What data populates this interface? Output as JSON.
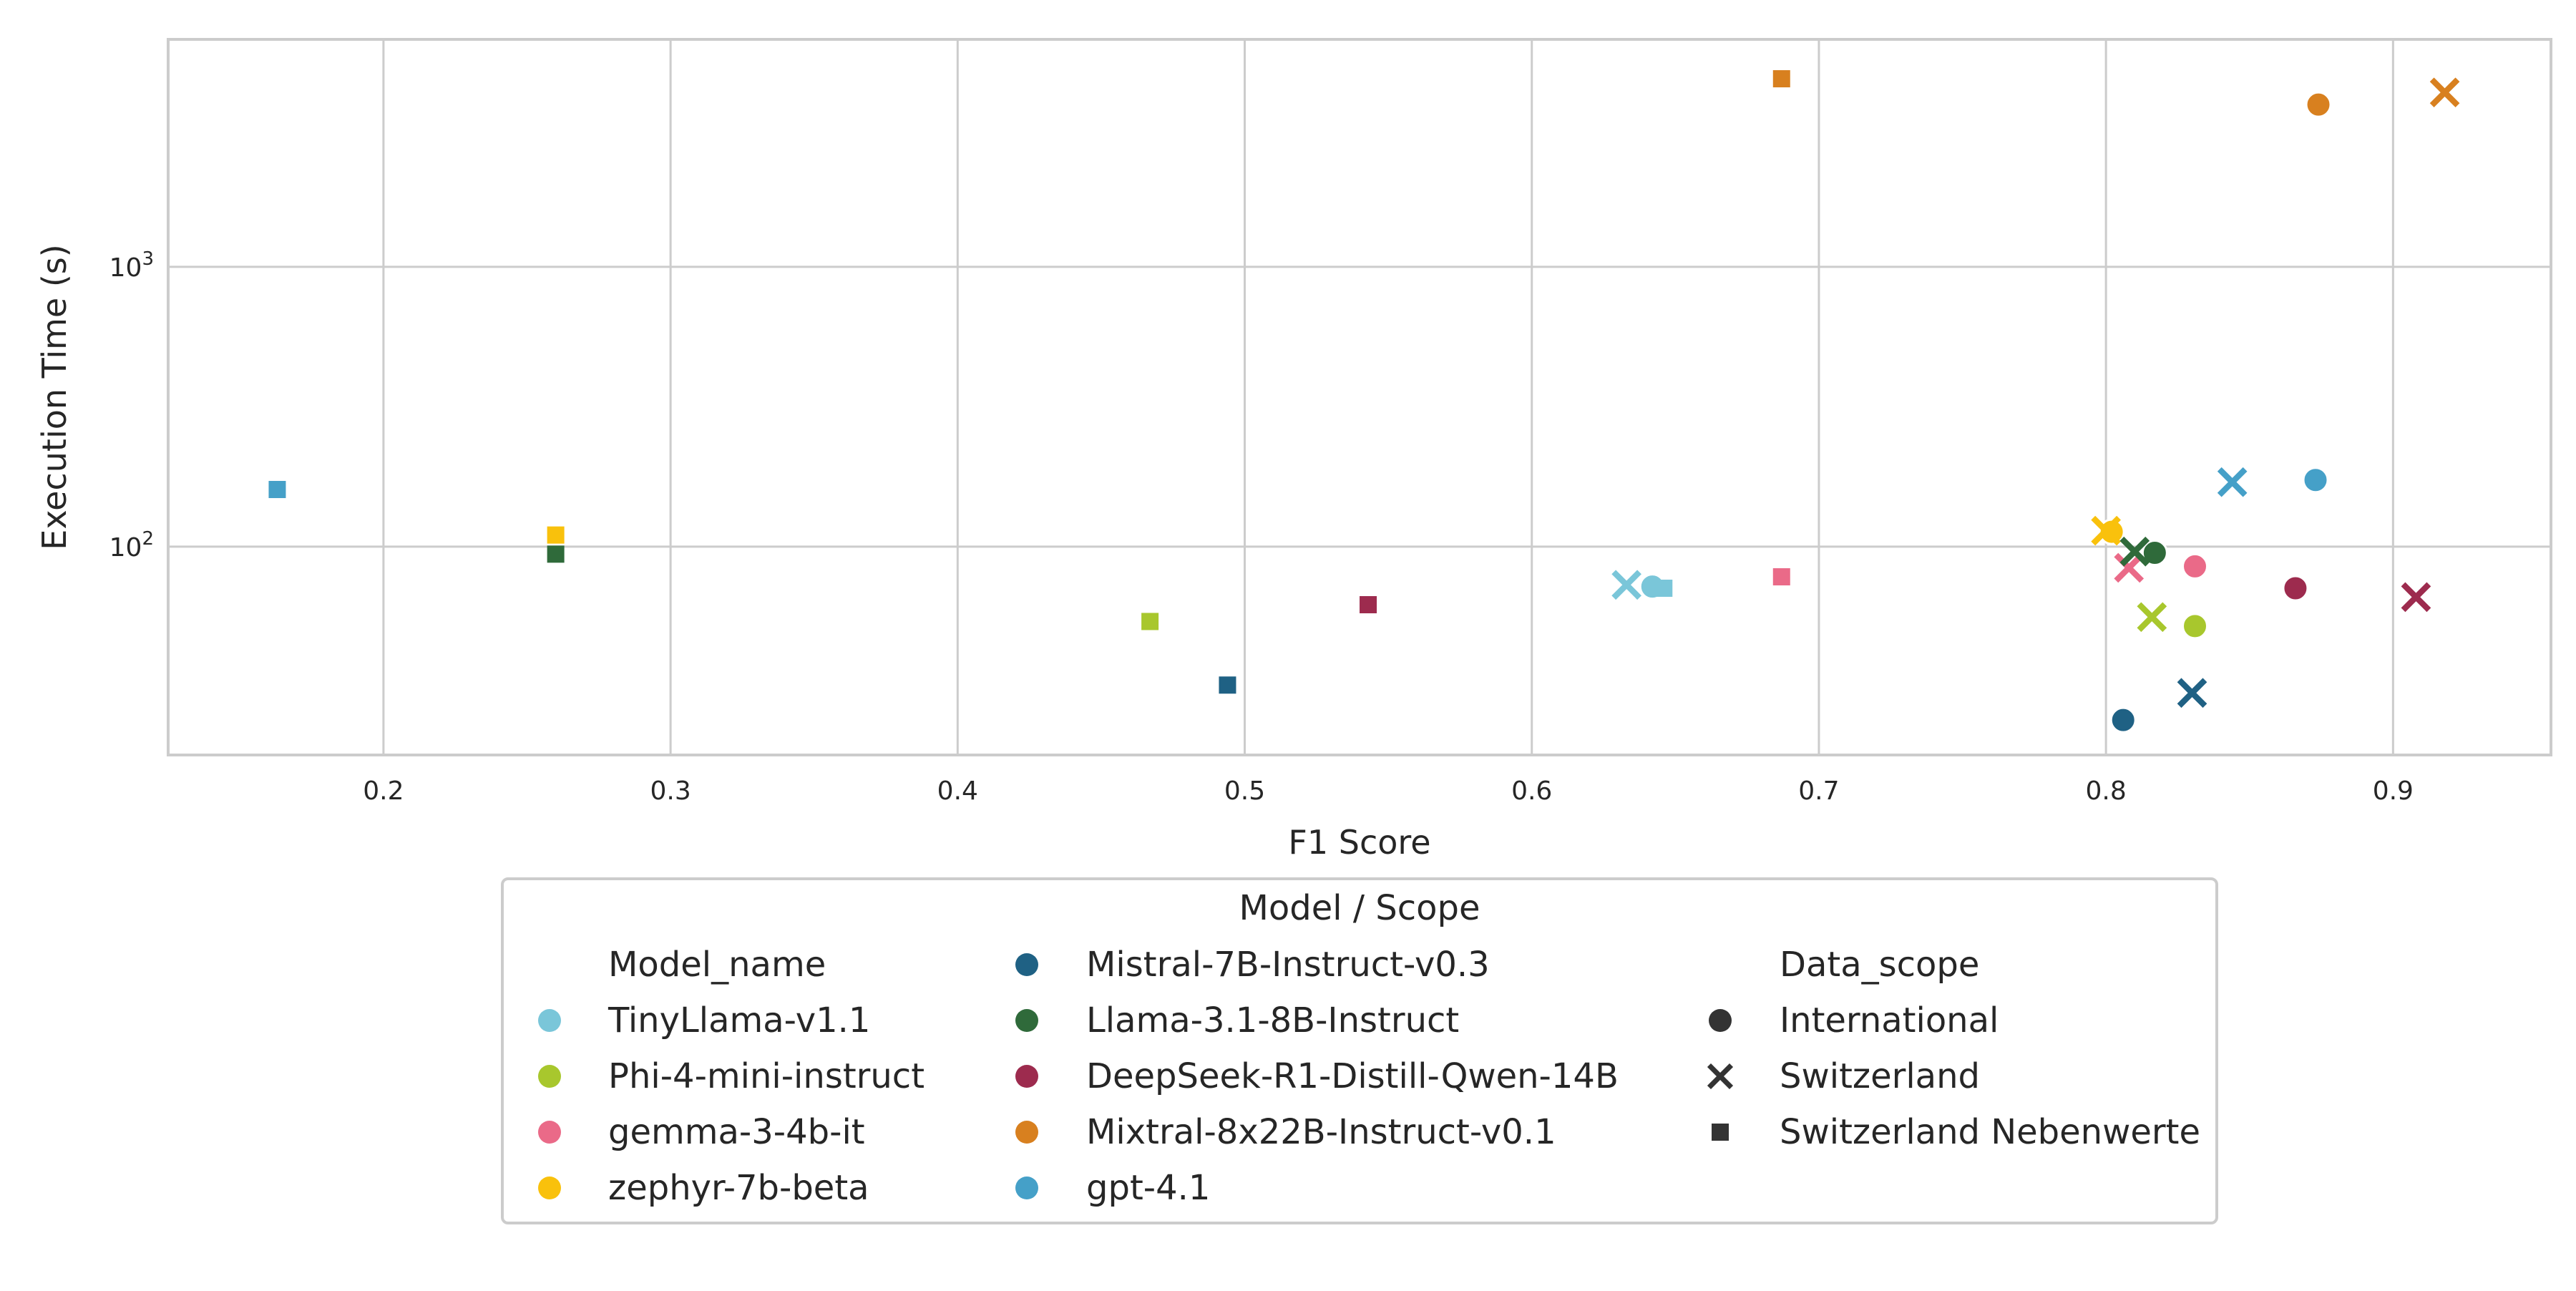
{
  "chart_data": {
    "type": "scatter",
    "title": "",
    "xlabel": "F1 Score",
    "ylabel": "Execution Time (s)",
    "xlim": [
      0.125,
      0.955
    ],
    "ylim": [
      18,
      6500
    ],
    "yscale": "log",
    "grid": true,
    "x_ticks": [
      {
        "value": 0.2,
        "label": "0.2"
      },
      {
        "value": 0.3,
        "label": "0.3"
      },
      {
        "value": 0.4,
        "label": "0.4"
      },
      {
        "value": 0.5,
        "label": "0.5"
      },
      {
        "value": 0.6,
        "label": "0.6"
      },
      {
        "value": 0.7,
        "label": "0.7"
      },
      {
        "value": 0.8,
        "label": "0.8"
      },
      {
        "value": 0.9,
        "label": "0.9"
      }
    ],
    "y_ticks": [
      {
        "value": 100,
        "base": "10",
        "exp": "2"
      },
      {
        "value": 1000,
        "base": "10",
        "exp": "3"
      }
    ],
    "legend": {
      "title": "Model / Scope",
      "placement": "below",
      "model_header": "Model_name",
      "scope_header": "Data_scope",
      "scope_color": "#333333"
    },
    "models": [
      {
        "name": "TinyLlama-v1.1",
        "color": "#7ac6d9"
      },
      {
        "name": "Phi-4-mini-instruct",
        "color": "#a8c72d"
      },
      {
        "name": "gemma-3-4b-it",
        "color": "#ea6a88"
      },
      {
        "name": "zephyr-7b-beta",
        "color": "#f9c10c"
      },
      {
        "name": "Mistral-7B-Instruct-v0.3",
        "color": "#1f6184"
      },
      {
        "name": "Llama-3.1-8B-Instruct",
        "color": "#2f6a3a"
      },
      {
        "name": "DeepSeek-R1-Distill-Qwen-14B",
        "color": "#9d2b4e"
      },
      {
        "name": "Mixtral-8x22B-Instruct-v0.1",
        "color": "#d8801f"
      },
      {
        "name": "gpt-4.1",
        "color": "#45a0c8"
      }
    ],
    "scopes": [
      {
        "name": "International",
        "marker": "circle"
      },
      {
        "name": "Switzerland",
        "marker": "x"
      },
      {
        "name": "Switzerland Nebenwerte",
        "marker": "square"
      }
    ],
    "points": [
      {
        "model": "TinyLlama-v1.1",
        "scope": "International",
        "x": 0.642,
        "y": 72
      },
      {
        "model": "TinyLlama-v1.1",
        "scope": "Switzerland",
        "x": 0.633,
        "y": 73
      },
      {
        "model": "TinyLlama-v1.1",
        "scope": "Switzerland Nebenwerte",
        "x": 0.646,
        "y": 71
      },
      {
        "model": "Phi-4-mini-instruct",
        "scope": "International",
        "x": 0.831,
        "y": 52
      },
      {
        "model": "Phi-4-mini-instruct",
        "scope": "Switzerland",
        "x": 0.816,
        "y": 56
      },
      {
        "model": "Phi-4-mini-instruct",
        "scope": "Switzerland Nebenwerte",
        "x": 0.467,
        "y": 54
      },
      {
        "model": "gemma-3-4b-it",
        "scope": "International",
        "x": 0.831,
        "y": 85
      },
      {
        "model": "gemma-3-4b-it",
        "scope": "Switzerland",
        "x": 0.808,
        "y": 84
      },
      {
        "model": "gemma-3-4b-it",
        "scope": "Switzerland Nebenwerte",
        "x": 0.687,
        "y": 78
      },
      {
        "model": "zephyr-7b-beta",
        "scope": "International",
        "x": 0.802,
        "y": 113
      },
      {
        "model": "zephyr-7b-beta",
        "scope": "Switzerland",
        "x": 0.8,
        "y": 114
      },
      {
        "model": "zephyr-7b-beta",
        "scope": "Switzerland Nebenwerte",
        "x": 0.26,
        "y": 110
      },
      {
        "model": "Mistral-7B-Instruct-v0.3",
        "scope": "International",
        "x": 0.806,
        "y": 24
      },
      {
        "model": "Mistral-7B-Instruct-v0.3",
        "scope": "Switzerland",
        "x": 0.83,
        "y": 30
      },
      {
        "model": "Mistral-7B-Instruct-v0.3",
        "scope": "Switzerland Nebenwerte",
        "x": 0.494,
        "y": 32
      },
      {
        "model": "Llama-3.1-8B-Instruct",
        "scope": "International",
        "x": 0.817,
        "y": 95
      },
      {
        "model": "Llama-3.1-8B-Instruct",
        "scope": "Switzerland",
        "x": 0.81,
        "y": 96
      },
      {
        "model": "Llama-3.1-8B-Instruct",
        "scope": "Switzerland Nebenwerte",
        "x": 0.26,
        "y": 94
      },
      {
        "model": "DeepSeek-R1-Distill-Qwen-14B",
        "scope": "International",
        "x": 0.866,
        "y": 71
      },
      {
        "model": "DeepSeek-R1-Distill-Qwen-14B",
        "scope": "Switzerland",
        "x": 0.908,
        "y": 66
      },
      {
        "model": "DeepSeek-R1-Distill-Qwen-14B",
        "scope": "Switzerland Nebenwerte",
        "x": 0.543,
        "y": 62
      },
      {
        "model": "Mixtral-8x22B-Instruct-v0.1",
        "scope": "International",
        "x": 0.874,
        "y": 3800
      },
      {
        "model": "Mixtral-8x22B-Instruct-v0.1",
        "scope": "Switzerland",
        "x": 0.918,
        "y": 4200
      },
      {
        "model": "Mixtral-8x22B-Instruct-v0.1",
        "scope": "Switzerland Nebenwerte",
        "x": 0.687,
        "y": 4700
      },
      {
        "model": "gpt-4.1",
        "scope": "International",
        "x": 0.873,
        "y": 173
      },
      {
        "model": "gpt-4.1",
        "scope": "Switzerland",
        "x": 0.844,
        "y": 170
      },
      {
        "model": "gpt-4.1",
        "scope": "Switzerland Nebenwerte",
        "x": 0.163,
        "y": 160
      }
    ]
  }
}
